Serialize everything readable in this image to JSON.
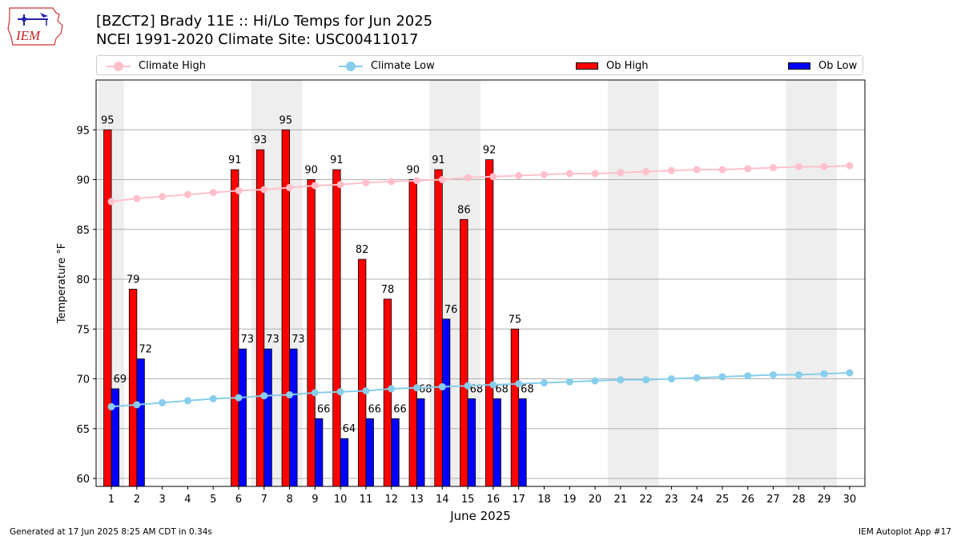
{
  "logo": {
    "text": "IEM"
  },
  "title_line1": "[BZCT2] Brady 11E :: Hi/Lo Temps for Jun 2025",
  "title_line2": "NCEI 1991-2020 Climate Site: USC00411017",
  "legend": {
    "climate_high": "Climate High",
    "climate_low": "Climate Low",
    "ob_high": "Ob High",
    "ob_low": "Ob Low"
  },
  "colors": {
    "climate_high": "#ffc0cb",
    "climate_low": "#87ceeb",
    "ob_high": "#ff0000",
    "ob_low": "#0000ff",
    "weekend_shade": "#eeeeee",
    "grid": "#b0b0b0"
  },
  "footer": {
    "generated": "Generated at 17 Jun 2025 8:25 AM CDT in 0.34s",
    "app": "IEM Autoplot App #17"
  },
  "chart_data": {
    "type": "bar",
    "xlabel": "June 2025",
    "ylabel": "Temperature °F",
    "ylim": [
      59.2,
      100
    ],
    "yticks": [
      60,
      65,
      70,
      75,
      80,
      85,
      90,
      95
    ],
    "grid": "horizontal",
    "legend_position": "top",
    "categories": [
      1,
      2,
      3,
      4,
      5,
      6,
      7,
      8,
      9,
      10,
      11,
      12,
      13,
      14,
      15,
      16,
      17,
      18,
      19,
      20,
      21,
      22,
      23,
      24,
      25,
      26,
      27,
      28,
      29,
      30
    ],
    "shaded_days": [
      1,
      7,
      8,
      14,
      15,
      21,
      22,
      28,
      29
    ],
    "series": [
      {
        "name": "Climate High",
        "kind": "line",
        "values": [
          87.8,
          88.1,
          88.3,
          88.5,
          88.7,
          88.9,
          89.0,
          89.2,
          89.4,
          89.5,
          89.7,
          89.8,
          89.9,
          90.0,
          90.2,
          90.3,
          90.4,
          90.5,
          90.6,
          90.6,
          90.7,
          90.8,
          90.9,
          91.0,
          91.0,
          91.1,
          91.2,
          91.3,
          91.3,
          91.4
        ]
      },
      {
        "name": "Climate Low",
        "kind": "line",
        "values": [
          67.2,
          67.4,
          67.6,
          67.8,
          68.0,
          68.1,
          68.3,
          68.4,
          68.6,
          68.7,
          68.8,
          69.0,
          69.1,
          69.2,
          69.3,
          69.4,
          69.5,
          69.6,
          69.7,
          69.8,
          69.9,
          69.9,
          70.0,
          70.1,
          70.2,
          70.3,
          70.4,
          70.4,
          70.5,
          70.6
        ]
      },
      {
        "name": "Ob High",
        "kind": "bar",
        "values": [
          95,
          79,
          null,
          null,
          null,
          91,
          93,
          95,
          90,
          91,
          82,
          78,
          90,
          91,
          86,
          92,
          75,
          null,
          null,
          null,
          null,
          null,
          null,
          null,
          null,
          null,
          null,
          null,
          null,
          null
        ]
      },
      {
        "name": "Ob Low",
        "kind": "bar",
        "values": [
          69,
          72,
          null,
          null,
          null,
          73,
          73,
          73,
          66,
          64,
          66,
          66,
          68,
          76,
          68,
          68,
          68,
          null,
          null,
          null,
          null,
          null,
          null,
          null,
          null,
          null,
          null,
          null,
          null,
          null
        ]
      }
    ]
  }
}
